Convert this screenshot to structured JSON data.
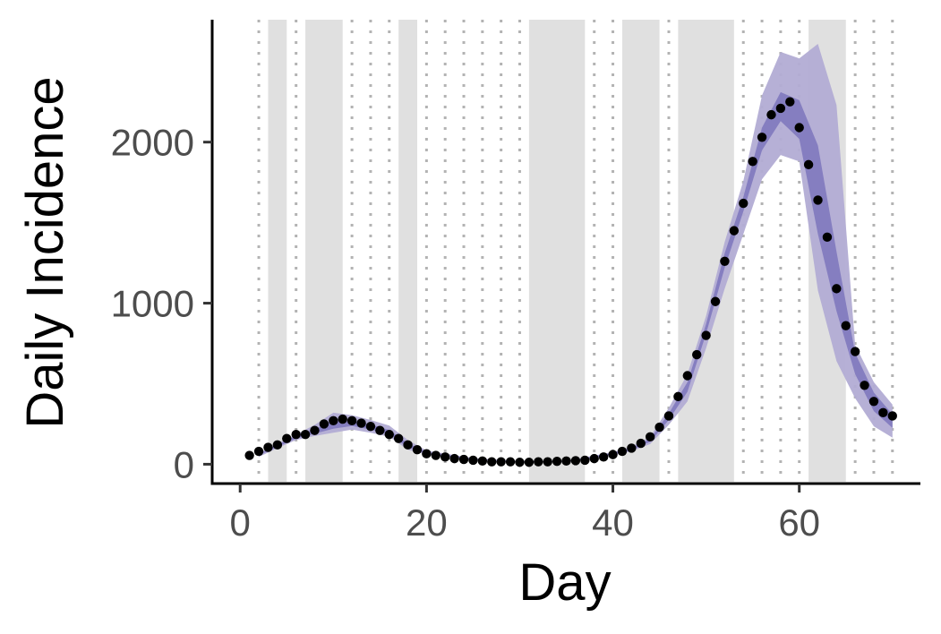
{
  "chart_data": {
    "type": "line",
    "xlabel": "Day",
    "ylabel": "Daily Incidence",
    "xlim": [
      -3,
      73
    ],
    "ylim": [
      -120,
      2760
    ],
    "x_ticks": [
      0,
      20,
      40,
      60
    ],
    "y_ticks": [
      0,
      1000,
      2000
    ],
    "x_tick_labels": [
      "0",
      "20",
      "40",
      "60"
    ],
    "y_tick_labels": [
      "0",
      "1000",
      "2000"
    ],
    "grid": false,
    "shaded_day_ranges": [
      [
        3,
        5
      ],
      [
        7,
        11
      ],
      [
        17,
        19
      ],
      [
        31,
        37
      ],
      [
        41,
        45
      ],
      [
        47,
        53
      ],
      [
        61,
        65
      ]
    ],
    "dotted_vline_days": [
      2,
      6,
      12,
      14,
      16,
      20,
      22,
      24,
      26,
      28,
      30,
      38,
      40,
      46,
      54,
      56,
      58,
      60,
      66,
      68,
      70
    ],
    "colors": {
      "outer_band": "#b2acd4",
      "inner_band": "#837bbf",
      "points": "#000000",
      "shading": "#e0e0e0",
      "dotted_lines": "#b3b3b3"
    },
    "series": [
      {
        "x": [
          1,
          2,
          3,
          4,
          5,
          6,
          7,
          8,
          9,
          10,
          11,
          12,
          13,
          14,
          15,
          16,
          17,
          18,
          19,
          20,
          21,
          22,
          23,
          24,
          25,
          26,
          27,
          28,
          29,
          30,
          31,
          32,
          33,
          34,
          35,
          36,
          37,
          38,
          39,
          40,
          41,
          42,
          43,
          44,
          45,
          46,
          47,
          48,
          49,
          50,
          51,
          52,
          53,
          54,
          55,
          56,
          57,
          58,
          59,
          60,
          61,
          62,
          63,
          64,
          65,
          66,
          67,
          68,
          69,
          70
        ],
        "y": [
          55,
          80,
          105,
          120,
          160,
          185,
          185,
          210,
          250,
          270,
          280,
          270,
          255,
          235,
          210,
          185,
          160,
          120,
          90,
          65,
          55,
          45,
          35,
          30,
          25,
          20,
          15,
          15,
          15,
          12,
          12,
          15,
          15,
          18,
          20,
          22,
          25,
          35,
          45,
          60,
          80,
          100,
          130,
          170,
          230,
          300,
          420,
          550,
          680,
          800,
          1010,
          1260,
          1450,
          1620,
          1880,
          2030,
          2170,
          2210,
          2250,
          2090,
          1860,
          1640,
          1410,
          1090,
          860,
          700,
          490,
          390,
          320,
          300
        ]
      }
    ],
    "bands": {
      "outer": {
        "x": [
          2,
          4,
          6,
          8,
          10,
          12,
          14,
          16,
          18,
          20,
          25,
          30,
          35,
          40,
          42,
          44,
          46,
          48,
          50,
          52,
          54,
          56,
          58,
          60,
          62,
          64,
          66,
          68,
          70
        ],
        "lower": [
          45,
          100,
          150,
          175,
          195,
          215,
          195,
          170,
          90,
          60,
          28,
          12,
          12,
          55,
          80,
          125,
          245,
          390,
          720,
          1090,
          1430,
          1770,
          1920,
          1880,
          1080,
          640,
          410,
          235,
          165
        ],
        "upper": [
          70,
          130,
          185,
          245,
          320,
          305,
          275,
          240,
          150,
          85,
          38,
          20,
          22,
          75,
          110,
          170,
          350,
          560,
          920,
          1380,
          1760,
          2290,
          2560,
          2520,
          2610,
          2230,
          740,
          510,
          370
        ]
      },
      "inner": {
        "x": [
          2,
          4,
          6,
          8,
          10,
          12,
          14,
          16,
          18,
          20,
          25,
          30,
          35,
          40,
          42,
          44,
          46,
          48,
          50,
          52,
          54,
          56,
          58,
          60,
          62,
          64,
          66,
          68,
          70
        ],
        "lower": [
          55,
          108,
          160,
          190,
          220,
          238,
          215,
          185,
          105,
          65,
          30,
          14,
          14,
          60,
          88,
          140,
          275,
          450,
          810,
          1220,
          1570,
          1950,
          2130,
          2020,
          1430,
          950,
          560,
          330,
          225
        ],
        "upper": [
          62,
          120,
          175,
          218,
          270,
          272,
          248,
          212,
          130,
          75,
          35,
          17,
          18,
          70,
          100,
          158,
          315,
          510,
          870,
          1310,
          1660,
          2090,
          2310,
          2260,
          1980,
          1320,
          690,
          445,
          310
        ]
      }
    }
  }
}
